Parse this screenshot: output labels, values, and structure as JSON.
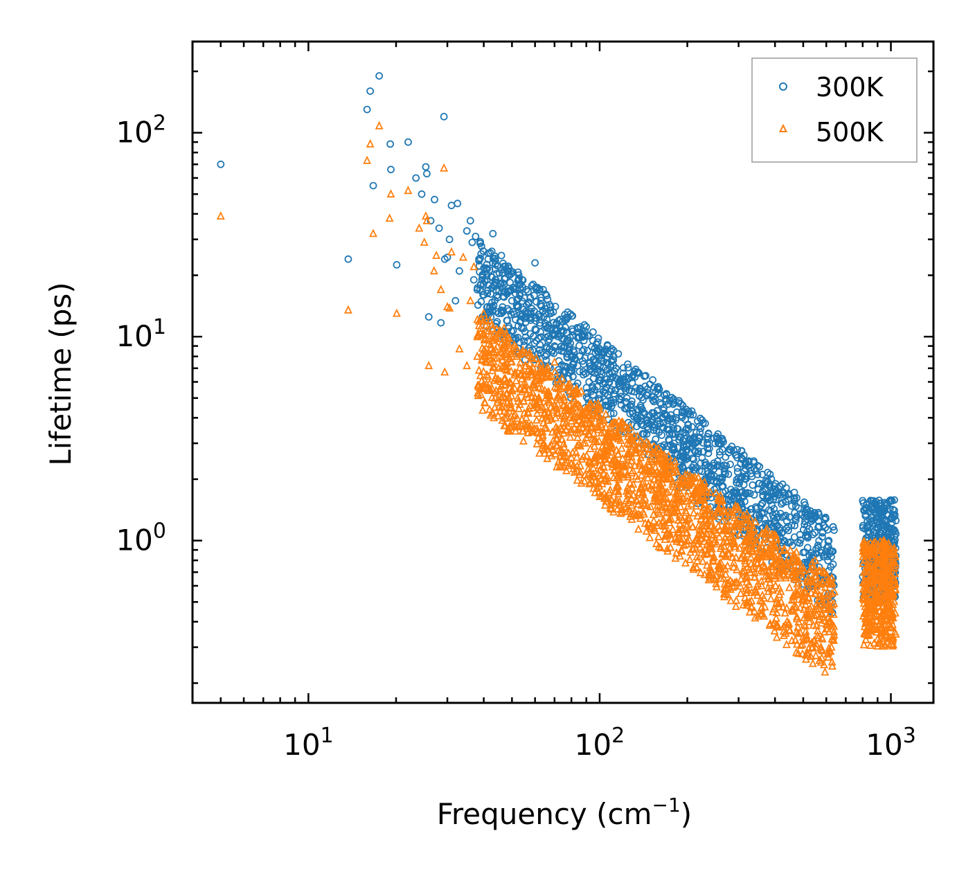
{
  "chart_data": {
    "type": "scatter",
    "title": "",
    "xlabel": "Frequency (cm",
    "xlabel_sup": "−1",
    "xlabel_close": ")",
    "ylabel": "Lifetime (ps)",
    "xscale": "log",
    "yscale": "log",
    "xlim": [
      4,
      1400
    ],
    "ylim": [
      0.16,
      280
    ],
    "x_ticks": [
      {
        "value": 10,
        "base": "10",
        "exp": "1"
      },
      {
        "value": 100,
        "base": "10",
        "exp": "2"
      },
      {
        "value": 1000,
        "base": "10",
        "exp": "3"
      }
    ],
    "y_ticks": [
      {
        "value": 1,
        "base": "10",
        "exp": "0"
      },
      {
        "value": 10,
        "base": "10",
        "exp": "1"
      },
      {
        "value": 100,
        "base": "10",
        "exp": "2"
      }
    ],
    "legend_position": "top-right",
    "series": [
      {
        "name": "300K",
        "marker": "circle",
        "color": "#1f77b4",
        "x": [
          5.0,
          13.7,
          15.9,
          16.3,
          16.7,
          17.5,
          19.1,
          19.2,
          20.1,
          22.0,
          23.4,
          24.5,
          25.3,
          25.5,
          25.9,
          26.3,
          27.1,
          28.1,
          28.5,
          29.2,
          29.4,
          30.0,
          30.5,
          31.0,
          32.0,
          32.5,
          33.0,
          35.0,
          36.0,
          36.5,
          37.0,
          37.5,
          38.0,
          38.5,
          39.0,
          40.0,
          41.0,
          42.0,
          43.0,
          44.0,
          45.0,
          46.0,
          47.0,
          48.0,
          49.0,
          50.0,
          52.0,
          54.0,
          55.0,
          56.0,
          58.0,
          60.0,
          62.0,
          64.0,
          66.0,
          68.0,
          70.0,
          72.0,
          74.0,
          76.0,
          78.0,
          80.0,
          84.0,
          88.0,
          92.0,
          96.0,
          100.0,
          105.0,
          110.0,
          115.0,
          120.0,
          125.0,
          130.0,
          135.0,
          140.0,
          145.0,
          150.0,
          158.0,
          165.0,
          172.0,
          180.0,
          190.0,
          200.0,
          210.0,
          220.0,
          230.0,
          240.0,
          255.0,
          265.0,
          275.0,
          290.0,
          305.0,
          320.0,
          340.0,
          355.0,
          370.0,
          385.0,
          400.0,
          415.0,
          430.0,
          450.0,
          470.0,
          490.0,
          510.0,
          530.0,
          550.0,
          570.0,
          590.0,
          610.0,
          630.0,
          810.0,
          830.0,
          850.0,
          870.0,
          890.0,
          910.0,
          930.0,
          950.0,
          970.0,
          990.0,
          1010.0,
          1030.0
        ],
        "y": [
          70.0,
          24.0,
          130.0,
          160.0,
          55.0,
          190.0,
          88.0,
          66.0,
          22.5,
          90.0,
          60.0,
          50.0,
          68.0,
          63.0,
          12.5,
          37.0,
          47.0,
          34.0,
          11.7,
          120.0,
          24.0,
          24.5,
          30.0,
          44.0,
          15.0,
          45.0,
          21.0,
          33.0,
          37.0,
          29.0,
          19.0,
          31.0,
          17.0,
          24.0,
          18.0,
          16.0,
          20.0,
          14.0,
          32.0,
          19.0,
          13.0,
          25.0,
          18.0,
          12.0,
          20.0,
          15.0,
          14.0,
          11.0,
          9.5,
          17.0,
          13.0,
          23.0,
          12.5,
          17.0,
          11.0,
          13.0,
          9.0,
          10.0,
          8.5,
          12.0,
          9.5,
          8.0,
          7.2,
          6.5,
          6.0,
          5.5,
          5.2,
          4.8,
          5.5,
          6.2,
          5.8,
          4.5,
          4.2,
          4.0,
          4.4,
          3.9,
          3.8,
          4.1,
          3.6,
          3.5,
          3.0,
          3.2,
          2.8,
          2.5,
          2.2,
          1.9,
          1.7,
          1.5,
          1.85,
          1.3,
          1.1,
          1.2,
          1.0,
          0.95,
          1.3,
          1.8,
          1.2,
          1.1,
          1.85,
          1.0,
          0.75,
          0.7,
          0.65,
          1.05,
          0.8,
          0.6,
          0.7,
          0.85,
          0.55,
          0.5,
          0.55,
          0.6,
          0.8,
          1.1,
          0.9,
          0.75,
          1.2,
          1.0,
          0.9,
          1.55,
          1.3,
          0.7
        ],
        "band": {
          "f0": 38,
          "f1": 640,
          "lo0": 12,
          "lo1": 0.42,
          "hi0": 30,
          "hi1": 1.2,
          "f2": 800,
          "f3": 1040,
          "lo2": 0.5,
          "hi2": 1.6,
          "seed": 7,
          "count": 1700
        }
      },
      {
        "name": "500K",
        "marker": "triangle",
        "color": "#ff7f0e",
        "x": [
          5.0,
          13.7,
          15.9,
          16.3,
          16.7,
          17.5,
          19.0,
          19.2,
          20.1,
          22.0,
          24.0,
          25.0,
          25.3,
          25.5,
          25.9,
          27.0,
          27.5,
          28.5,
          29.2,
          29.4,
          30.0,
          30.5,
          31.0,
          33.0,
          34.0,
          35.0,
          36.0,
          37.0,
          38.0,
          39.0,
          40.0,
          41.0,
          42.0,
          43.0,
          44.0,
          45.0,
          46.0,
          47.0,
          48.0,
          49.0,
          50.0,
          52.0,
          54.0,
          56.0,
          58.0,
          60.0,
          62.0,
          64.0,
          66.0,
          68.0,
          70.0,
          72.0,
          75.0,
          78.0,
          80.0,
          84.0,
          88.0,
          92.0,
          96.0,
          100.0,
          105.0,
          110.0,
          115.0,
          120.0,
          125.0,
          130.0,
          135.0,
          140.0,
          150.0,
          160.0,
          170.0,
          180.0,
          190.0,
          200.0,
          215.0,
          230.0,
          245.0,
          260.0,
          275.0,
          290.0,
          305.0,
          320.0,
          340.0,
          360.0,
          380.0,
          400.0,
          420.0,
          440.0,
          460.0,
          480.0,
          500.0,
          525.0,
          550.0,
          575.0,
          600.0,
          625.0,
          810.0,
          840.0,
          870.0,
          900.0,
          930.0,
          960.0,
          990.0,
          1020.0
        ],
        "y": [
          39.0,
          13.5,
          73.0,
          88.0,
          32.0,
          108.0,
          38.0,
          50.0,
          13.0,
          52.0,
          34.0,
          29.0,
          39.0,
          37.0,
          7.2,
          21.0,
          25.0,
          17.0,
          67.0,
          6.7,
          14.0,
          13.8,
          26.0,
          8.7,
          24.5,
          7.2,
          15.0,
          22.0,
          8.0,
          11.0,
          13.0,
          6.5,
          12.0,
          4.2,
          10.0,
          7.0,
          4.5,
          11.0,
          6.0,
          7.8,
          5.5,
          8.0,
          6.2,
          4.0,
          6.5,
          5.0,
          4.8,
          6.8,
          5.3,
          4.5,
          7.5,
          4.2,
          3.8,
          5.8,
          3.5,
          3.2,
          3.0,
          3.3,
          2.9,
          2.7,
          2.5,
          3.2,
          2.4,
          2.3,
          2.1,
          2.2,
          2.0,
          1.9,
          1.8,
          1.7,
          1.6,
          1.5,
          1.3,
          1.2,
          1.0,
          0.9,
          0.8,
          0.7,
          0.75,
          0.6,
          0.55,
          0.5,
          0.45,
          0.6,
          0.9,
          0.7,
          0.5,
          0.4,
          0.45,
          0.35,
          0.55,
          0.4,
          0.8,
          0.3,
          0.5,
          0.3,
          0.35,
          0.5,
          0.4,
          0.6,
          0.35,
          0.7,
          0.45,
          0.9
        ],
        "band": {
          "f0": 38,
          "f1": 640,
          "lo0": 4.5,
          "lo1": 0.2,
          "hi0": 13,
          "hi1": 0.65,
          "f2": 800,
          "f3": 1040,
          "lo2": 0.3,
          "hi2": 1.0,
          "seed": 13,
          "count": 2200
        }
      }
    ]
  }
}
